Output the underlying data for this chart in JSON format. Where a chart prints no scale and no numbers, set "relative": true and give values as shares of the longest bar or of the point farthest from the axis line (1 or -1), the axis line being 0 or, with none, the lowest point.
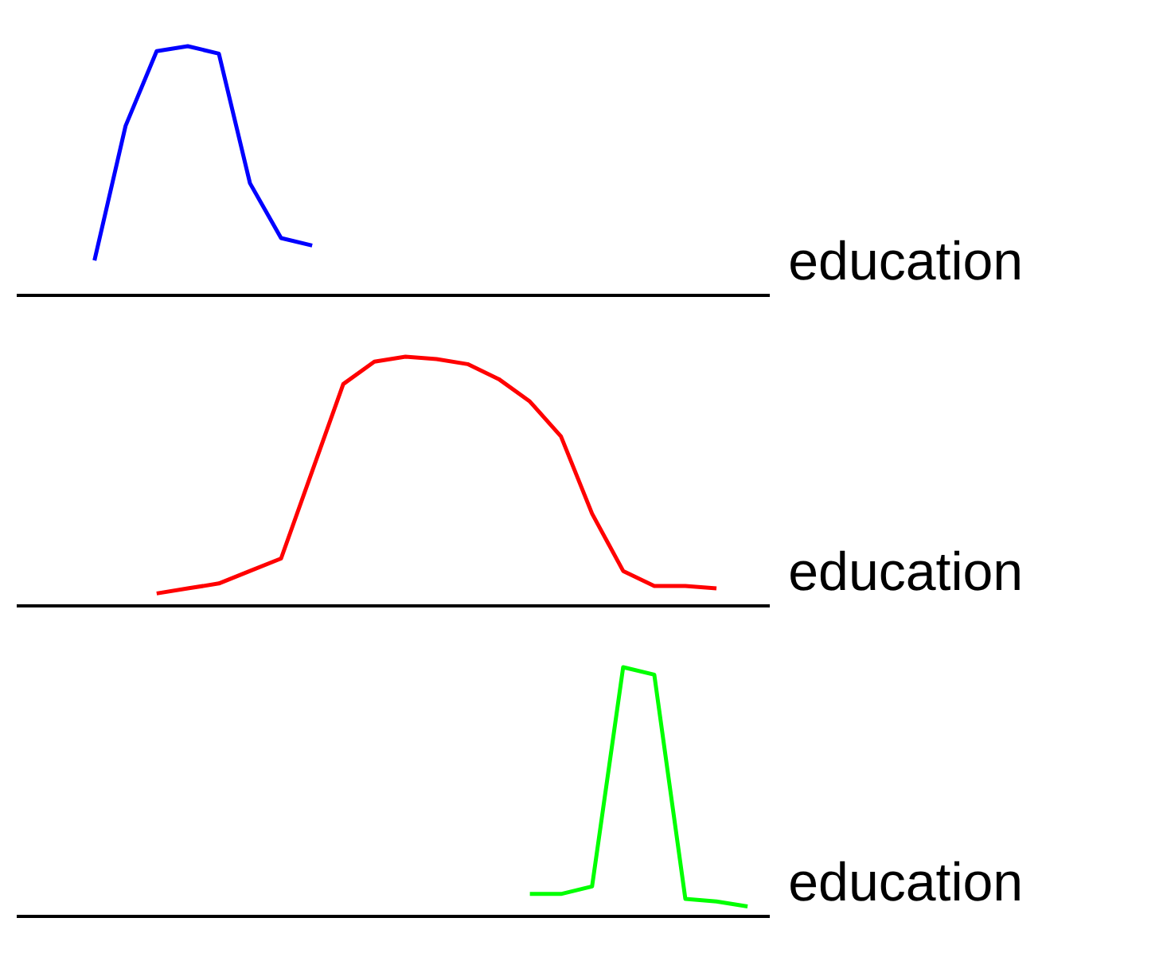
{
  "chart_data": [
    {
      "type": "line",
      "relative": true,
      "xlabel": "education",
      "tick_labels": false,
      "categories": [
        null,
        null,
        null,
        null,
        null,
        null,
        null,
        null,
        null,
        null,
        null,
        null,
        null,
        null,
        null,
        null,
        null,
        null,
        null,
        null,
        null,
        null,
        null,
        null
      ],
      "series": [
        {
          "color": "#0000ff",
          "values": [
            null,
            null,
            0.14,
            0.68,
            0.98,
            1.0,
            0.97,
            0.45,
            0.23,
            0.2,
            null,
            null,
            null,
            null,
            null,
            null,
            null,
            null,
            null,
            null,
            null,
            null,
            null,
            null
          ]
        }
      ]
    },
    {
      "type": "line",
      "relative": true,
      "xlabel": "education",
      "tick_labels": false,
      "categories": [
        null,
        null,
        null,
        null,
        null,
        null,
        null,
        null,
        null,
        null,
        null,
        null,
        null,
        null,
        null,
        null,
        null,
        null,
        null,
        null,
        null,
        null,
        null,
        null
      ],
      "series": [
        {
          "color": "#ff0000",
          "values": [
            null,
            null,
            null,
            null,
            0.05,
            0.07,
            0.09,
            0.14,
            0.19,
            0.54,
            0.89,
            0.98,
            1.0,
            0.99,
            0.97,
            0.91,
            0.82,
            0.68,
            0.37,
            0.14,
            0.08,
            0.08,
            0.07,
            null
          ]
        }
      ]
    },
    {
      "type": "line",
      "relative": true,
      "xlabel": "education",
      "tick_labels": false,
      "categories": [
        null,
        null,
        null,
        null,
        null,
        null,
        null,
        null,
        null,
        null,
        null,
        null,
        null,
        null,
        null,
        null,
        null,
        null,
        null,
        null,
        null,
        null,
        null,
        null
      ],
      "series": [
        {
          "color": "#00ff00",
          "values": [
            null,
            null,
            null,
            null,
            null,
            null,
            null,
            null,
            null,
            null,
            null,
            null,
            null,
            null,
            null,
            null,
            0.09,
            0.09,
            0.12,
            1.0,
            0.97,
            0.07,
            0.06,
            0.04
          ]
        }
      ]
    }
  ]
}
